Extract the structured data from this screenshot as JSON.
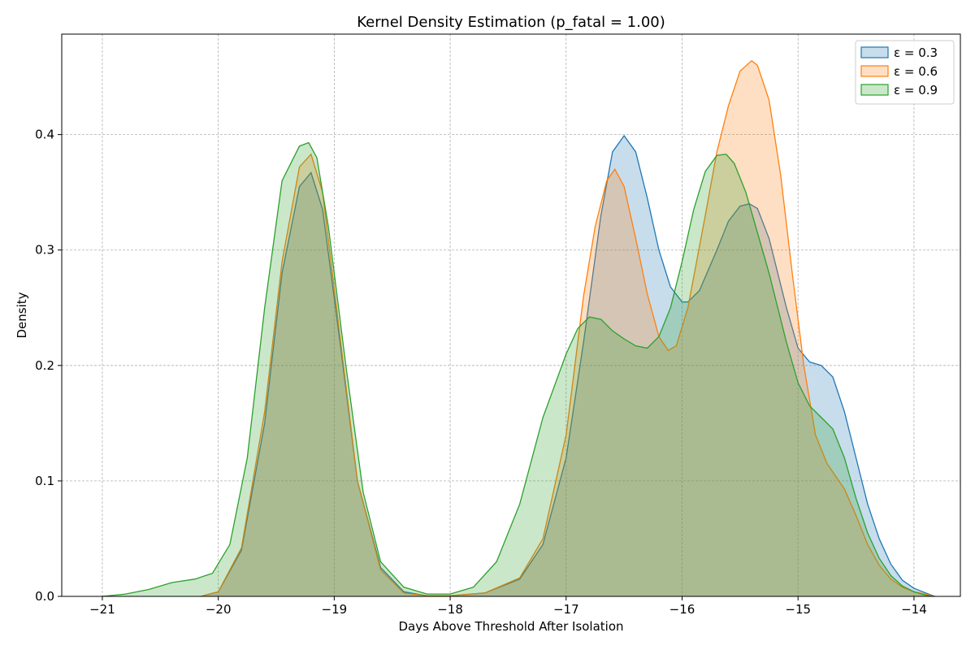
{
  "chart_data": {
    "type": "area",
    "title": "Kernel Density Estimation (p_fatal = 1.00)",
    "xlabel": "Days Above Threshold After Isolation",
    "ylabel": "Density",
    "xlim": [
      -21.35,
      -13.6
    ],
    "ylim": [
      0,
      0.487
    ],
    "xticks": [
      -21,
      -20,
      -19,
      -18,
      -17,
      -16,
      -15,
      -14
    ],
    "xtick_labels": [
      "−21",
      "−20",
      "−19",
      "−18",
      "−17",
      "−16",
      "−15",
      "−14"
    ],
    "yticks": [
      0.0,
      0.1,
      0.2,
      0.3,
      0.4
    ],
    "ytick_labels": [
      "0.0",
      "0.1",
      "0.2",
      "0.3",
      "0.4"
    ],
    "grid": true,
    "legend_position": "top-right",
    "series": [
      {
        "name": "ε = 0.3",
        "color": "#1f77b4",
        "x": [
          -20.15,
          -20.0,
          -19.8,
          -19.6,
          -19.45,
          -19.3,
          -19.2,
          -19.1,
          -18.95,
          -18.8,
          -18.6,
          -18.4,
          -18.2,
          -18.0,
          -17.7,
          -17.4,
          -17.2,
          -17.0,
          -16.85,
          -16.7,
          -16.6,
          -16.5,
          -16.4,
          -16.3,
          -16.2,
          -16.1,
          -16.0,
          -15.95,
          -15.85,
          -15.7,
          -15.6,
          -15.5,
          -15.42,
          -15.35,
          -15.25,
          -15.1,
          -15.0,
          -14.9,
          -14.8,
          -14.7,
          -14.6,
          -14.5,
          -14.4,
          -14.3,
          -14.2,
          -14.1,
          -14.0,
          -13.9,
          -13.82
        ],
        "values": [
          0.0,
          0.004,
          0.04,
          0.15,
          0.28,
          0.355,
          0.367,
          0.335,
          0.22,
          0.1,
          0.025,
          0.004,
          0.0005,
          0.0005,
          0.003,
          0.015,
          0.045,
          0.12,
          0.22,
          0.33,
          0.385,
          0.399,
          0.385,
          0.345,
          0.3,
          0.268,
          0.255,
          0.255,
          0.265,
          0.3,
          0.325,
          0.338,
          0.34,
          0.336,
          0.31,
          0.25,
          0.215,
          0.203,
          0.2,
          0.19,
          0.16,
          0.12,
          0.08,
          0.05,
          0.028,
          0.014,
          0.007,
          0.003,
          0.0
        ]
      },
      {
        "name": "ε = 0.6",
        "color": "#ff7f0e",
        "x": [
          -20.15,
          -20.0,
          -19.8,
          -19.6,
          -19.45,
          -19.3,
          -19.2,
          -19.1,
          -18.95,
          -18.8,
          -18.6,
          -18.4,
          -18.2,
          -18.0,
          -17.7,
          -17.4,
          -17.2,
          -17.0,
          -16.85,
          -16.75,
          -16.65,
          -16.58,
          -16.5,
          -16.4,
          -16.3,
          -16.2,
          -16.12,
          -16.05,
          -15.95,
          -15.8,
          -15.7,
          -15.6,
          -15.5,
          -15.4,
          -15.35,
          -15.25,
          -15.15,
          -15.05,
          -14.95,
          -14.85,
          -14.75,
          -14.6,
          -14.5,
          -14.4,
          -14.3,
          -14.2,
          -14.1,
          -14.0,
          -13.9,
          -13.82
        ],
        "values": [
          0.0,
          0.004,
          0.042,
          0.16,
          0.29,
          0.372,
          0.383,
          0.35,
          0.225,
          0.1,
          0.023,
          0.003,
          0.0005,
          0.0005,
          0.003,
          0.016,
          0.05,
          0.14,
          0.26,
          0.32,
          0.36,
          0.37,
          0.355,
          0.31,
          0.262,
          0.225,
          0.213,
          0.217,
          0.25,
          0.33,
          0.385,
          0.425,
          0.455,
          0.464,
          0.46,
          0.43,
          0.365,
          0.28,
          0.2,
          0.14,
          0.115,
          0.093,
          0.07,
          0.045,
          0.027,
          0.015,
          0.008,
          0.004,
          0.002,
          0.0
        ]
      },
      {
        "name": "ε = 0.9",
        "color": "#2ca02c",
        "x": [
          -21.0,
          -20.8,
          -20.6,
          -20.4,
          -20.2,
          -20.05,
          -19.9,
          -19.75,
          -19.6,
          -19.45,
          -19.3,
          -19.22,
          -19.15,
          -19.05,
          -18.9,
          -18.75,
          -18.6,
          -18.4,
          -18.2,
          -18.0,
          -17.8,
          -17.6,
          -17.4,
          -17.2,
          -17.0,
          -16.9,
          -16.8,
          -16.7,
          -16.6,
          -16.5,
          -16.4,
          -16.3,
          -16.2,
          -16.1,
          -16.0,
          -15.9,
          -15.8,
          -15.7,
          -15.62,
          -15.55,
          -15.45,
          -15.35,
          -15.25,
          -15.1,
          -15.0,
          -14.9,
          -14.8,
          -14.7,
          -14.6,
          -14.5,
          -14.4,
          -14.3,
          -14.2,
          -14.1,
          -14.0,
          -13.9,
          -13.82
        ],
        "values": [
          0.0,
          0.002,
          0.006,
          0.012,
          0.015,
          0.02,
          0.045,
          0.12,
          0.25,
          0.36,
          0.39,
          0.393,
          0.38,
          0.32,
          0.2,
          0.09,
          0.03,
          0.008,
          0.002,
          0.002,
          0.008,
          0.03,
          0.08,
          0.155,
          0.21,
          0.232,
          0.242,
          0.24,
          0.23,
          0.223,
          0.217,
          0.215,
          0.225,
          0.25,
          0.29,
          0.335,
          0.368,
          0.382,
          0.383,
          0.375,
          0.35,
          0.315,
          0.28,
          0.22,
          0.185,
          0.165,
          0.155,
          0.145,
          0.12,
          0.085,
          0.055,
          0.033,
          0.018,
          0.009,
          0.004,
          0.001,
          0.0
        ]
      }
    ]
  }
}
